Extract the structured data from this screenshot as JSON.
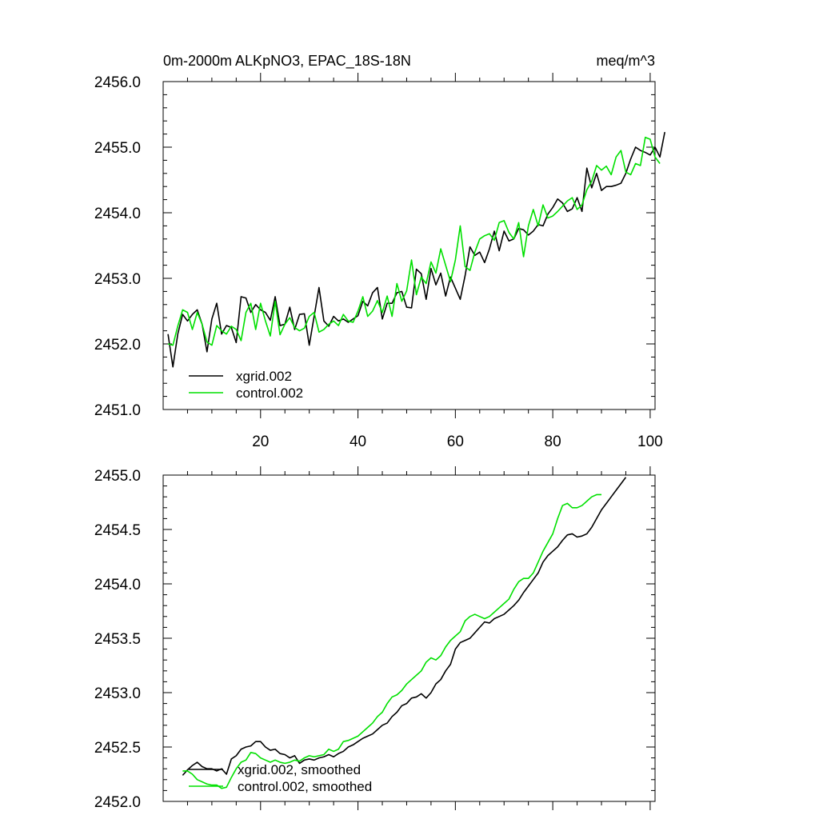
{
  "colors": {
    "xgrid": "#000000",
    "control": "#00e000"
  },
  "chart_data": [
    {
      "type": "line",
      "title": "0m-2000m ALKpNO3, EPAC_18S-18N",
      "units": "meq/m^3",
      "ylim": [
        2451.0,
        2456.0
      ],
      "yticks": [
        "2451.0",
        "2452.0",
        "2453.0",
        "2454.0",
        "2455.0",
        "2456.0"
      ],
      "xlim": [
        0,
        101
      ],
      "xticks": [
        20,
        40,
        60,
        80,
        100
      ],
      "xticklabels": [
        "20",
        "40",
        "60",
        "80",
        "100"
      ],
      "legend": "bottom-left",
      "series": [
        {
          "name": "xgrid.002",
          "values": [
            2452.15,
            2451.65,
            2452.15,
            2452.45,
            2452.35,
            2452.45,
            2452.52,
            2452.3,
            2451.88,
            2452.38,
            2452.62,
            2452.15,
            2452.28,
            2452.25,
            2452.02,
            2452.72,
            2452.7,
            2452.48,
            2452.6,
            2452.52,
            2452.48,
            2452.36,
            2452.72,
            2452.28,
            2452.3,
            2452.56,
            2452.22,
            2452.45,
            2452.46,
            2451.98,
            2452.42,
            2452.86,
            2452.35,
            2452.27,
            2452.42,
            2452.35,
            2452.38,
            2452.33,
            2452.38,
            2452.43,
            2452.65,
            2452.58,
            2452.78,
            2452.86,
            2452.38,
            2452.62,
            2452.62,
            2452.78,
            2452.8,
            2452.56,
            2452.55,
            2453.14,
            2453.07,
            2452.68,
            2453.15,
            2452.9,
            2453.08,
            2452.73,
            2453.02,
            2452.85,
            2452.68,
            2453.04,
            2453.48,
            2453.35,
            2453.4,
            2453.24,
            2453.45,
            2453.72,
            2453.42,
            2453.72,
            2453.57,
            2453.6,
            2453.76,
            2453.74,
            2453.66,
            2453.72,
            2453.82,
            2453.8,
            2453.98,
            2454.08,
            2454.21,
            2454.15,
            2454.02,
            2454.06,
            2454.23,
            2454.02,
            2454.68,
            2454.38,
            2454.6,
            2454.34,
            2454.4,
            2454.4,
            2454.42,
            2454.45,
            2454.6,
            2454.82,
            2455.0,
            2454.95,
            2454.92,
            2454.88,
            2455.0,
            2454.85,
            2455.23
          ]
        },
        {
          "name": "control.002",
          "values": [
            2452.0,
            2451.98,
            2452.27,
            2452.52,
            2452.48,
            2452.22,
            2452.48,
            2452.3,
            2452.03,
            2451.98,
            2452.28,
            2452.2,
            2452.15,
            2452.27,
            2452.22,
            2452.05,
            2452.48,
            2452.62,
            2452.22,
            2452.62,
            2452.35,
            2452.12,
            2452.65,
            2452.14,
            2452.3,
            2452.4,
            2452.25,
            2452.2,
            2452.24,
            2452.42,
            2452.48,
            2452.18,
            2452.22,
            2452.3,
            2452.35,
            2452.28,
            2452.45,
            2452.35,
            2452.33,
            2452.5,
            2452.72,
            2452.42,
            2452.5,
            2452.66,
            2452.48,
            2452.73,
            2452.42,
            2452.92,
            2452.65,
            2452.81,
            2453.28,
            2452.75,
            2453.02,
            2452.92,
            2453.25,
            2453.08,
            2453.45,
            2453.2,
            2452.95,
            2453.28,
            2453.8,
            2453.18,
            2453.12,
            2453.4,
            2453.6,
            2453.65,
            2453.68,
            2453.58,
            2453.85,
            2453.88,
            2453.7,
            2453.6,
            2453.85,
            2453.33,
            2453.8,
            2454.05,
            2453.8,
            2454.12,
            2453.92,
            2453.95,
            2454.02,
            2454.1,
            2454.18,
            2454.23,
            2454.05,
            2454.12,
            2454.35,
            2454.48,
            2454.72,
            2454.65,
            2454.71,
            2454.58,
            2454.85,
            2454.95,
            2454.62,
            2454.58,
            2454.75,
            2454.72,
            2455.15,
            2455.12,
            2454.85,
            2454.75
          ]
        }
      ]
    },
    {
      "type": "line",
      "title": "",
      "ylim": [
        2452.0,
        2455.0
      ],
      "yticks": [
        "2452.0",
        "2452.5",
        "2453.0",
        "2453.5",
        "2454.0",
        "2454.5",
        "2455.0"
      ],
      "xlim": [
        0,
        101
      ],
      "xticks": [
        20,
        40,
        60,
        80,
        100
      ],
      "legend": "bottom-left",
      "series": [
        {
          "name": "xgrid.002, smoothed",
          "start": 4,
          "values": [
            2452.24,
            2452.29,
            2452.33,
            2452.36,
            2452.32,
            2452.3,
            2452.3,
            2452.28,
            2452.3,
            2452.25,
            2452.39,
            2452.42,
            2452.48,
            2452.5,
            2452.51,
            2452.55,
            2452.55,
            2452.5,
            2452.47,
            2452.48,
            2452.44,
            2452.43,
            2452.4,
            2452.42,
            2452.35,
            2452.38,
            2452.39,
            2452.38,
            2452.4,
            2452.41,
            2452.43,
            2452.41,
            2452.44,
            2452.46,
            2452.5,
            2452.52,
            2452.55,
            2452.58,
            2452.6,
            2452.62,
            2452.66,
            2452.7,
            2452.72,
            2452.78,
            2452.82,
            2452.88,
            2452.9,
            2452.95,
            2452.96,
            2452.99,
            2452.95,
            2453.0,
            2453.08,
            2453.12,
            2453.2,
            2453.26,
            2453.4,
            2453.46,
            2453.48,
            2453.5,
            2453.55,
            2453.6,
            2453.65,
            2453.64,
            2453.68,
            2453.7,
            2453.72,
            2453.76,
            2453.8,
            2453.85,
            2453.92,
            2453.98,
            2454.04,
            2454.1,
            2454.2,
            2454.26,
            2454.3,
            2454.34,
            2454.4,
            2454.45,
            2454.46,
            2454.43,
            2454.44,
            2454.46,
            2454.52,
            2454.6,
            2454.68,
            2454.74,
            2454.8,
            2454.86,
            2454.92,
            2454.98
          ]
        },
        {
          "name": "control.002, smoothed",
          "start": 4,
          "values": [
            2452.28,
            2452.28,
            2452.25,
            2452.2,
            2452.18,
            2452.16,
            2452.15,
            2452.15,
            2452.12,
            2452.13,
            2452.22,
            2452.3,
            2452.36,
            2452.38,
            2452.45,
            2452.44,
            2452.4,
            2452.38,
            2452.36,
            2452.38,
            2452.36,
            2452.35,
            2452.36,
            2452.38,
            2452.37,
            2452.4,
            2452.42,
            2452.41,
            2452.42,
            2452.43,
            2452.48,
            2452.46,
            2452.48,
            2452.55,
            2452.56,
            2452.58,
            2452.6,
            2452.64,
            2452.68,
            2452.72,
            2452.78,
            2452.82,
            2452.9,
            2452.96,
            2452.98,
            2453.02,
            2453.08,
            2453.12,
            2453.16,
            2453.2,
            2453.28,
            2453.32,
            2453.3,
            2453.34,
            2453.42,
            2453.48,
            2453.52,
            2453.56,
            2453.66,
            2453.7,
            2453.72,
            2453.7,
            2453.68,
            2453.7,
            2453.74,
            2453.78,
            2453.82,
            2453.86,
            2453.95,
            2454.02,
            2454.05,
            2454.05,
            2454.1,
            2454.2,
            2454.3,
            2454.38,
            2454.46,
            2454.6,
            2454.72,
            2454.74,
            2454.7,
            2454.7,
            2454.72,
            2454.76,
            2454.8,
            2454.82,
            2454.82
          ]
        }
      ]
    }
  ]
}
